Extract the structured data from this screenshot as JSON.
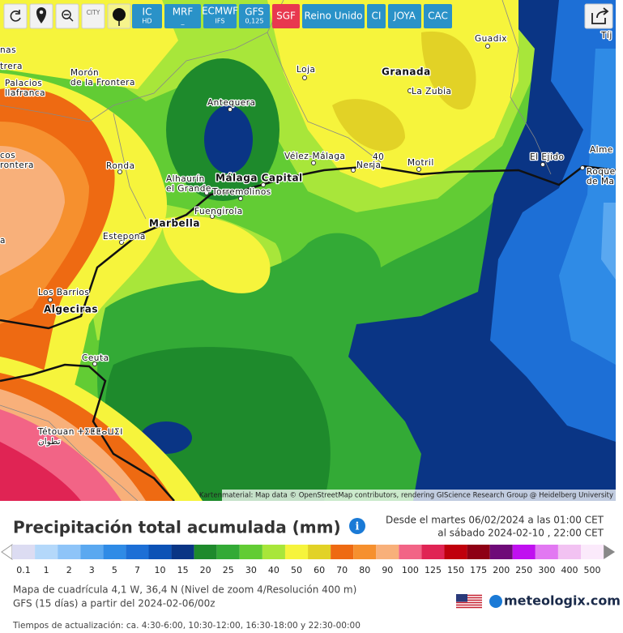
{
  "toolbar": {
    "city": "CITY",
    "buttons": [
      {
        "label": "IC",
        "sub": "HD"
      },
      {
        "label": "MRF",
        "sub": "_"
      },
      {
        "label": "ECMWF",
        "sub": "IFS"
      },
      {
        "label": "GFS",
        "sub": "0,125"
      },
      {
        "label": "SGF"
      },
      {
        "label": "Reino Unido"
      },
      {
        "label": "CI"
      },
      {
        "label": "JOYA"
      },
      {
        "label": "CAC"
      }
    ]
  },
  "map": {
    "labels": [
      {
        "lines": [
          "nas"
        ]
      },
      {
        "lines": [
          "trera"
        ]
      },
      {
        "lines": [
          "Palacios",
          "llafranca"
        ]
      },
      {
        "lines": [
          "Morón",
          "de la Frontera"
        ]
      },
      {
        "lines": [
          "Guadix"
        ]
      },
      {
        "lines": [
          "Loja"
        ]
      },
      {
        "lines": [
          "Granada"
        ]
      },
      {
        "lines": [
          "La Zubia"
        ]
      },
      {
        "lines": [
          "Antequera"
        ]
      },
      {
        "lines": [
          "Vélez-Málaga"
        ]
      },
      {
        "lines": [
          "40"
        ]
      },
      {
        "lines": [
          "Nerja"
        ]
      },
      {
        "lines": [
          "Motril"
        ]
      },
      {
        "lines": [
          "El Ejido"
        ]
      },
      {
        "lines": [
          "Alme"
        ]
      },
      {
        "lines": [
          "Roque",
          "de Ma"
        ]
      },
      {
        "lines": [
          "Tíj"
        ]
      },
      {
        "lines": [
          "cos",
          "rontera"
        ]
      },
      {
        "lines": [
          "Ronda"
        ]
      },
      {
        "lines": [
          "Alhaurín",
          "el Grande"
        ]
      },
      {
        "lines": [
          "Málaga Capital"
        ]
      },
      {
        "lines": [
          "Torremolinos"
        ]
      },
      {
        "lines": [
          "Fuengirola"
        ]
      },
      {
        "lines": [
          "Marbella"
        ]
      },
      {
        "lines": [
          "Estepona"
        ]
      },
      {
        "lines": [
          "a"
        ]
      },
      {
        "lines": [
          "Los Barrios"
        ]
      },
      {
        "lines": [
          "Algeciras"
        ]
      },
      {
        "lines": [
          "Ceuta"
        ]
      },
      {
        "lines": [
          "Tétouan ⵜⵉⵟⵟⴰⵡⵉⵏ",
          "تطوان"
        ]
      }
    ],
    "attribution": "Kartenmaterial: Map data © OpenStreetMap contributors, rendering GIScience Research Group @ Heidelberg University"
  },
  "panel": {
    "title": "Precipitación total acumulada (mm)",
    "period": [
      "Desde el martes 06/02/2024 a  las 01:00  CET",
      "al sábado 2024-02-10 ,  22:00  CET"
    ],
    "legend": {
      "values": [
        0.1,
        1,
        2,
        3,
        5,
        7,
        10,
        15,
        20,
        25,
        30,
        40,
        50,
        60,
        70,
        80,
        90,
        100,
        125,
        150,
        175,
        200,
        250,
        300,
        400,
        500
      ],
      "colors": [
        "#dcdcf2",
        "#b4d8fa",
        "#8ec4f8",
        "#5aa8f0",
        "#2f8be6",
        "#1d6fd6",
        "#0c52b6",
        "#0a3585",
        "#1e8a2c",
        "#33aa36",
        "#62cc34",
        "#a8e63a",
        "#f6f43c",
        "#e2d226",
        "#ee6a12",
        "#f6902e",
        "#f8b07a",
        "#f26486",
        "#e02454",
        "#c0000c",
        "#8e0014",
        "#6e0a78",
        "#c010f0",
        "#e278f2",
        "#f2c2f2",
        "#fbeafb"
      ]
    },
    "info": [
      "Mapa de cuadrícula 4,1 W, 36,4 N (Nivel de zoom 4/Resolución 400 m)",
      "GFS (15 días) a partir del 2024-02-06/00z"
    ],
    "brand": "meteologix.com",
    "updates": "Tiempos de actualización: ca. 4:30-6:00, 10:30-12:00, 16:30-18:00 y 22:30-00:00"
  }
}
